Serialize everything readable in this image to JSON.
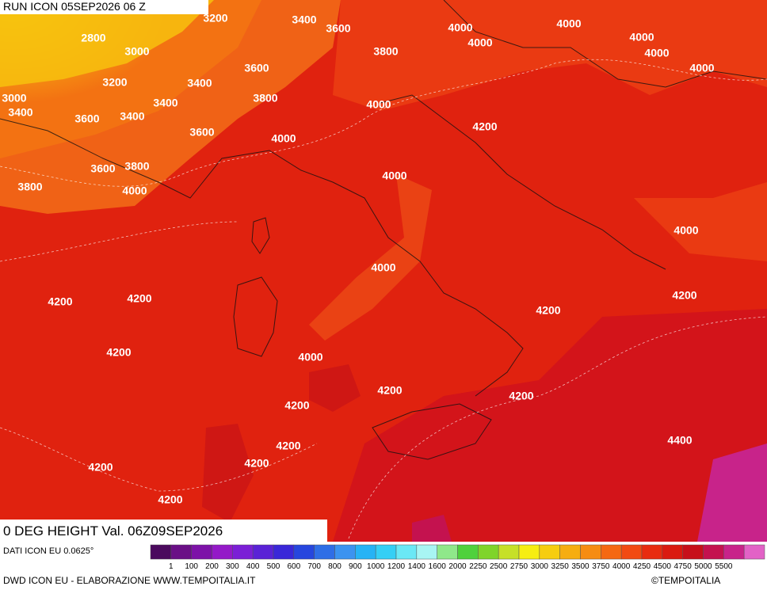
{
  "header": {
    "run": "RUN ICON 05SEP2026 06 Z"
  },
  "map": {
    "title": "0 DEG HEIGHT Val. 06Z09SEP2026",
    "contour_labels": [
      "3200",
      "3400",
      "3600",
      "4000",
      "4000",
      "4000",
      "2800",
      "3000",
      "4000",
      "4000",
      "3800",
      "4000",
      "3200",
      "3400",
      "3600",
      "3000",
      "3400",
      "3400",
      "3800",
      "4000",
      "3600",
      "3400",
      "4200",
      "3600",
      "4000",
      "3600",
      "3800",
      "4000",
      "3800",
      "4000",
      "4000",
      "4000",
      "4200",
      "4200",
      "4200",
      "4200",
      "4200",
      "4000",
      "4200",
      "4200",
      "4200",
      "4400",
      "4200",
      "4200",
      "4200",
      "4200"
    ]
  },
  "legend": {
    "source": "DATI ICON EU 0.0625°",
    "colors": [
      "#4b0a5e",
      "#6a0f86",
      "#7d12a8",
      "#9419c8",
      "#7b1fd6",
      "#5a22d6",
      "#3a27d8",
      "#2646de",
      "#2f6ee6",
      "#3b93f0",
      "#26b3f5",
      "#35cff5",
      "#6ae8f5",
      "#a8f5f3",
      "#8fe88a",
      "#4fd13c",
      "#7fd42a",
      "#c6e028",
      "#f6ee12",
      "#f6cd0f",
      "#f6ad10",
      "#f68c12",
      "#f56812",
      "#f24a12",
      "#e82c10",
      "#da1a10",
      "#c7101a",
      "#c4124f",
      "#c8238a",
      "#e262c6"
    ],
    "labels": [
      "1",
      "100",
      "200",
      "300",
      "400",
      "500",
      "600",
      "700",
      "800",
      "900",
      "1000",
      "1200",
      "1400",
      "1600",
      "2000",
      "2250",
      "2500",
      "2750",
      "3000",
      "3250",
      "3500",
      "3750",
      "4000",
      "4250",
      "4500",
      "4750",
      "5000",
      "5500"
    ]
  },
  "footer": {
    "credit": "DWD ICON EU - ELABORAZIONE WWW.TEMPOITALIA.IT",
    "brand": "©TEMPOITALIA"
  }
}
